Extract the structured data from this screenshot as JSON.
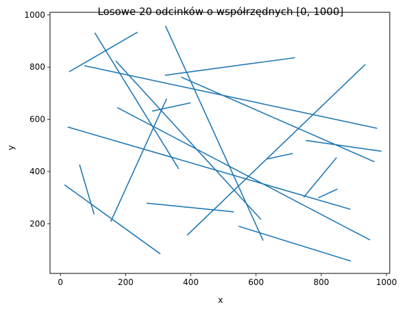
{
  "chart_data": {
    "type": "line",
    "title": "Losowe 20 odcinków o współrzędnych [0, 1000]",
    "xlabel": "x",
    "ylabel": "y",
    "xlim": [
      -32,
      1010
    ],
    "ylim": [
      10,
      1010
    ],
    "xticks": [
      0,
      200,
      400,
      600,
      800,
      1000
    ],
    "yticks": [
      200,
      400,
      600,
      800,
      1000
    ],
    "grid": false,
    "legend": "none",
    "color": "#1f77b4",
    "segments": [
      {
        "x": [
          28,
          235
        ],
        "y": [
          783,
          933
        ]
      },
      {
        "x": [
          106,
          362
        ],
        "y": [
          930,
          412
        ]
      },
      {
        "x": [
          75,
          970
        ],
        "y": [
          805,
          566
        ]
      },
      {
        "x": [
          322,
          718
        ],
        "y": [
          769,
          836
        ]
      },
      {
        "x": [
          323,
          621
        ],
        "y": [
          956,
          138
        ]
      },
      {
        "x": [
          372,
          962
        ],
        "y": [
          761,
          438
        ]
      },
      {
        "x": [
          171,
          614
        ],
        "y": [
          822,
          218
        ]
      },
      {
        "x": [
          283,
          398
        ],
        "y": [
          632,
          663
        ]
      },
      {
        "x": [
          176,
          948
        ],
        "y": [
          644,
          139
        ]
      },
      {
        "x": [
          155,
          325
        ],
        "y": [
          210,
          677
        ]
      },
      {
        "x": [
          24,
          888
        ],
        "y": [
          570,
          256
        ]
      },
      {
        "x": [
          754,
          983
        ],
        "y": [
          519,
          478
        ]
      },
      {
        "x": [
          390,
          934
        ],
        "y": [
          158,
          809
        ]
      },
      {
        "x": [
          637,
          711
        ],
        "y": [
          449,
          469
        ]
      },
      {
        "x": [
          747,
          846
        ],
        "y": [
          303,
          452
        ]
      },
      {
        "x": [
          59,
          103
        ],
        "y": [
          425,
          238
        ]
      },
      {
        "x": [
          266,
          530
        ],
        "y": [
          279,
          246
        ]
      },
      {
        "x": [
          14,
          305
        ],
        "y": [
          348,
          86
        ]
      },
      {
        "x": [
          548,
          889
        ],
        "y": [
          190,
          58
        ]
      },
      {
        "x": [
          792,
          848
        ],
        "y": [
          300,
          332
        ]
      }
    ]
  }
}
